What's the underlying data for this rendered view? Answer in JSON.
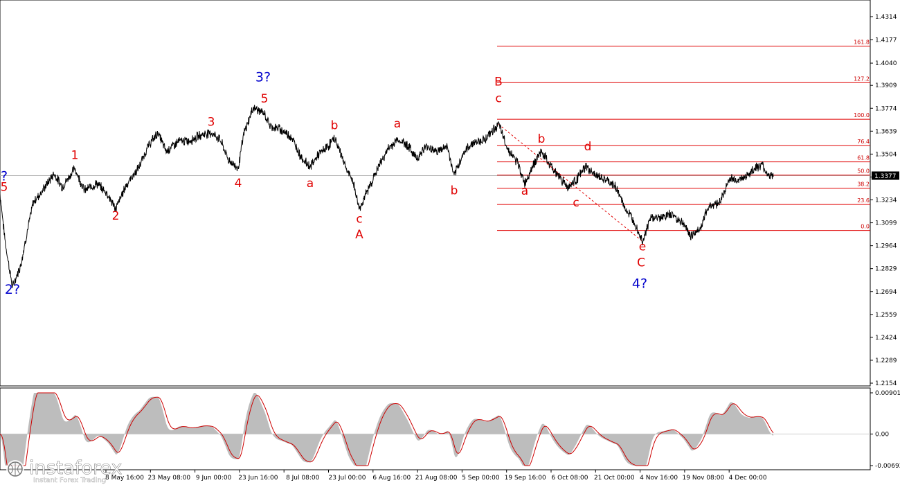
{
  "chart_data": [
    {
      "type": "line",
      "panel": "price",
      "series_color": "#000000",
      "y_ticks": [
        "1.4314",
        "1.4177",
        "1.4040",
        "1.3909",
        "1.3774",
        "1.3639",
        "1.3504",
        "1.3369",
        "1.3234",
        "1.3099",
        "1.2964",
        "1.2829",
        "1.2694",
        "1.2559",
        "1.2424",
        "1.2289",
        "1.2154"
      ],
      "ylim": [
        1.2154,
        1.4314
      ],
      "x_ticks": [
        "8 May 16:00",
        "23 May 08:00",
        "9 Jun 00:00",
        "23 Jun 16:00",
        "8 Jul 08:00",
        "23 Jul 00:00",
        "6 Aug 16:00",
        "21 Aug 08:00",
        "5 Sep 00:00",
        "19 Sep 16:00",
        "6 Oct 08:00",
        "21 Oct 00:00",
        "4 Nov 16:00",
        "19 Nov 08:00",
        "4 Dec 00:00"
      ],
      "current_price": "1.3377",
      "current_price_value": 1.3377,
      "keypoints": [
        [
          0,
          1.327
        ],
        [
          8,
          1.297
        ],
        [
          18,
          1.272
        ],
        [
          30,
          1.285
        ],
        [
          38,
          1.302
        ],
        [
          48,
          1.322
        ],
        [
          60,
          1.328
        ],
        [
          78,
          1.339
        ],
        [
          90,
          1.331
        ],
        [
          108,
          1.342
        ],
        [
          122,
          1.329
        ],
        [
          140,
          1.333
        ],
        [
          155,
          1.327
        ],
        [
          167,
          1.318
        ],
        [
          182,
          1.332
        ],
        [
          200,
          1.342
        ],
        [
          214,
          1.355
        ],
        [
          228,
          1.363
        ],
        [
          240,
          1.352
        ],
        [
          258,
          1.358
        ],
        [
          272,
          1.358
        ],
        [
          292,
          1.362
        ],
        [
          305,
          1.363
        ],
        [
          318,
          1.359
        ],
        [
          330,
          1.347
        ],
        [
          344,
          1.342
        ],
        [
          352,
          1.362
        ],
        [
          366,
          1.378
        ],
        [
          382,
          1.374
        ],
        [
          390,
          1.367
        ],
        [
          405,
          1.365
        ],
        [
          420,
          1.361
        ],
        [
          436,
          1.348
        ],
        [
          448,
          1.343
        ],
        [
          460,
          1.35
        ],
        [
          474,
          1.355
        ],
        [
          483,
          1.36
        ],
        [
          492,
          1.351
        ],
        [
          502,
          1.34
        ],
        [
          510,
          1.334
        ],
        [
          519,
          1.318
        ],
        [
          530,
          1.328
        ],
        [
          548,
          1.344
        ],
        [
          560,
          1.353
        ],
        [
          574,
          1.359
        ],
        [
          588,
          1.356
        ],
        [
          602,
          1.348
        ],
        [
          616,
          1.355
        ],
        [
          632,
          1.352
        ],
        [
          646,
          1.355
        ],
        [
          656,
          1.337
        ],
        [
          668,
          1.35
        ],
        [
          682,
          1.357
        ],
        [
          700,
          1.359
        ],
        [
          720,
          1.368
        ],
        [
          734,
          1.353
        ],
        [
          748,
          1.345
        ],
        [
          758,
          1.333
        ],
        [
          770,
          1.344
        ],
        [
          782,
          1.352
        ],
        [
          794,
          1.344
        ],
        [
          808,
          1.337
        ],
        [
          820,
          1.331
        ],
        [
          832,
          1.335
        ],
        [
          846,
          1.343
        ],
        [
          860,
          1.338
        ],
        [
          875,
          1.335
        ],
        [
          890,
          1.331
        ],
        [
          902,
          1.319
        ],
        [
          916,
          1.311
        ],
        [
          928,
          1.299
        ],
        [
          940,
          1.313
        ],
        [
          955,
          1.313
        ],
        [
          970,
          1.315
        ],
        [
          986,
          1.31
        ],
        [
          998,
          1.302
        ],
        [
          1012,
          1.307
        ],
        [
          1024,
          1.32
        ],
        [
          1040,
          1.322
        ],
        [
          1054,
          1.336
        ],
        [
          1068,
          1.335
        ],
        [
          1080,
          1.338
        ],
        [
          1090,
          1.342
        ],
        [
          1100,
          1.344
        ],
        [
          1110,
          1.338
        ],
        [
          1117,
          1.337
        ]
      ],
      "fibonacci_levels": [
        {
          "label": "161.8",
          "value": 1.414
        },
        {
          "label": "127.2",
          "value": 1.3925
        },
        {
          "label": "100.0",
          "value": 1.3709
        },
        {
          "label": "76.4",
          "value": 1.3554
        },
        {
          "label": "61.8",
          "value": 1.3458
        },
        {
          "label": "50.0",
          "value": 1.338
        },
        {
          "label": "38.2",
          "value": 1.3303
        },
        {
          "label": "23.6",
          "value": 1.3207
        },
        {
          "label": "0.0",
          "value": 1.3054
        }
      ],
      "wave_labels": [
        {
          "text": "?",
          "color": "blue",
          "i": 0,
          "y": 1.3349
        },
        {
          "text": "5",
          "color": "red",
          "i": 0,
          "y": 1.3287
        },
        {
          "text": "2?",
          "color": "blue",
          "i": 18,
          "y": 1.268
        },
        {
          "text": "1",
          "color": "red",
          "i": 108,
          "y": 1.3475
        },
        {
          "text": "2",
          "color": "red",
          "i": 167,
          "y": 1.3117
        },
        {
          "text": "3",
          "color": "red",
          "i": 305,
          "y": 1.3671
        },
        {
          "text": "4",
          "color": "red",
          "i": 344,
          "y": 1.331
        },
        {
          "text": "3?",
          "color": "blue",
          "i": 380,
          "y": 1.3932
        },
        {
          "text": "5",
          "color": "red",
          "i": 382,
          "y": 1.3808
        },
        {
          "text": "a",
          "color": "red",
          "i": 448,
          "y": 1.331
        },
        {
          "text": "b",
          "color": "red",
          "i": 483,
          "y": 1.365
        },
        {
          "text": "c",
          "color": "red",
          "i": 519,
          "y": 1.31
        },
        {
          "text": "A",
          "color": "red",
          "i": 519,
          "y": 1.3008
        },
        {
          "text": "a",
          "color": "red",
          "i": 574,
          "y": 1.366
        },
        {
          "text": "b",
          "color": "red",
          "i": 656,
          "y": 1.3267
        },
        {
          "text": "B",
          "color": "red",
          "i": 720,
          "y": 1.3908
        },
        {
          "text": "c",
          "color": "red",
          "i": 720,
          "y": 1.381
        },
        {
          "text": "a",
          "color": "red",
          "i": 758,
          "y": 1.3265
        },
        {
          "text": "b",
          "color": "red",
          "i": 782,
          "y": 1.357
        },
        {
          "text": "c",
          "color": "red",
          "i": 832,
          "y": 1.3195
        },
        {
          "text": "d",
          "color": "red",
          "i": 849,
          "y": 1.3525
        },
        {
          "text": "e",
          "color": "red",
          "i": 928,
          "y": 1.2935
        },
        {
          "text": "C",
          "color": "red",
          "i": 926,
          "y": 1.2842
        },
        {
          "text": "4?",
          "color": "blue",
          "i": 924,
          "y": 1.2715
        }
      ],
      "trendline": {
        "from": [
          720,
          1.368
        ],
        "to": [
          928,
          1.299
        ],
        "style": "dashed",
        "color": "#e00000"
      }
    },
    {
      "type": "area",
      "panel": "oscillator",
      "y_ticks": [
        "0.00901",
        "0.00",
        "-0.00692"
      ],
      "ylim": [
        -0.00692,
        0.00901
      ],
      "histogram_color": "#bdbdbd",
      "signal_color": "#cc0000"
    }
  ],
  "watermark": {
    "brand": "instaforex",
    "tagline": "Instant Forex Trading"
  }
}
